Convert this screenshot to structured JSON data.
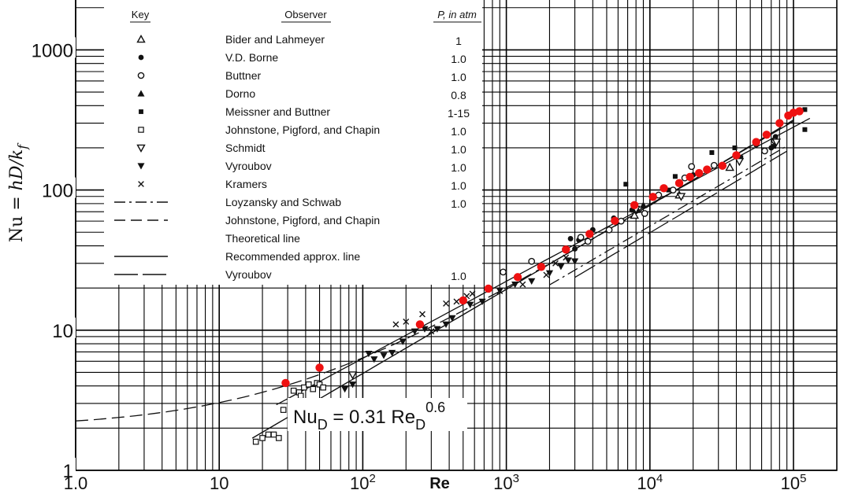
{
  "chart_data": {
    "type": "scatter",
    "x_scale": "log",
    "y_scale": "log",
    "xlim": [
      1,
      150000
    ],
    "ylim": [
      1,
      3200
    ],
    "grid": true,
    "x_ticks": [
      {
        "value": 1,
        "label": "1.0"
      },
      {
        "value": 10,
        "label": "10"
      },
      {
        "value": 100,
        "label": "10",
        "exp": "2"
      },
      {
        "value": 1000,
        "label": "10",
        "exp": "3"
      },
      {
        "value": 10000,
        "label": "10",
        "exp": "4"
      },
      {
        "value": 100000,
        "label": "10",
        "exp": "5"
      }
    ],
    "y_ticks": [
      {
        "value": 1,
        "label": "1"
      },
      {
        "value": 10,
        "label": "10"
      },
      {
        "value": 100,
        "label": "100"
      },
      {
        "value": 1000,
        "label": "1000"
      }
    ],
    "xlabel": "Re",
    "ylabel": {
      "base": "Nu = ",
      "expr": "hD/k",
      "sub": "f"
    },
    "legend": {
      "placement": "top-left",
      "headers": {
        "key": "Key",
        "observer": "Observer",
        "pressure": "P, in atm"
      },
      "entries": [
        {
          "marker": "triangle-open",
          "observer": "Bider and Lahmeyer",
          "pressure": "1"
        },
        {
          "marker": "circle-filled",
          "observer": "V.D. Borne",
          "pressure": "1.0"
        },
        {
          "marker": "circle-open",
          "observer": "Buttner",
          "pressure": "1.0"
        },
        {
          "marker": "triangle-filled",
          "observer": "Dorno",
          "pressure": "0.8"
        },
        {
          "marker": "square-filled",
          "observer": "Meissner and Buttner",
          "pressure": "1-15"
        },
        {
          "marker": "square-open",
          "observer": "Johnstone, Pigford, and Chapin",
          "pressure": "1.0"
        },
        {
          "marker": "triangle-down-open",
          "observer": "Schmidt",
          "pressure": "1.0"
        },
        {
          "marker": "triangle-down-filled",
          "observer": "Vyroubov",
          "pressure": "1.0"
        },
        {
          "marker": "x",
          "observer": "Kramers",
          "pressure": "1.0"
        },
        {
          "marker": "line-dashdot",
          "observer": "Loyzansky and Schwab",
          "pressure": "1.0"
        },
        {
          "marker": "line-dashed",
          "observer": "Johnstone, Pigford, and Chapin",
          "pressure": ""
        },
        {
          "marker": "none",
          "observer": "Theoretical line",
          "pressure": ""
        },
        {
          "marker": "line-solid",
          "observer": "Recommended approx. line",
          "pressure": ""
        },
        {
          "marker": "line-longdash",
          "observer": "Vyroubov",
          "pressure": "1.0"
        }
      ]
    },
    "annotation": {
      "text": "Nu",
      "sub": "D",
      "mid": " = 0.31 Re",
      "sub2": "D",
      "sup": "0.6"
    },
    "series": [
      {
        "name": "Bider and Lahmeyer",
        "marker": "triangle-open",
        "color": "#111111",
        "points": [
          [
            7800,
            66
          ],
          [
            36000,
            145
          ],
          [
            16000,
            92
          ]
        ]
      },
      {
        "name": "V.D. Borne",
        "marker": "circle-filled",
        "color": "#111111",
        "points": [
          [
            2800,
            45
          ],
          [
            3200,
            44
          ],
          [
            4000,
            52
          ],
          [
            5600,
            63
          ],
          [
            7500,
            72
          ],
          [
            75000,
            240
          ],
          [
            70000,
            200
          ],
          [
            55000,
            210
          ],
          [
            20000,
            128
          ],
          [
            3000,
            38
          ]
        ]
      },
      {
        "name": "Buttner",
        "marker": "circle-open",
        "color": "#111111",
        "points": [
          [
            950,
            26
          ],
          [
            1500,
            31
          ],
          [
            3300,
            46
          ],
          [
            3700,
            43
          ],
          [
            5200,
            52
          ],
          [
            6300,
            60
          ],
          [
            9200,
            68
          ],
          [
            11500,
            92
          ],
          [
            14500,
            100
          ],
          [
            17500,
            122
          ],
          [
            19500,
            147
          ],
          [
            28000,
            150
          ],
          [
            63000,
            190
          ],
          [
            74000,
            225
          ]
        ]
      },
      {
        "name": "Dorno",
        "marker": "triangle-filled",
        "color": "#111111",
        "points": [
          [
            8200,
            72
          ],
          [
            9000,
            78
          ]
        ]
      },
      {
        "name": "Meissner and Buttner",
        "marker": "square-filled",
        "color": "#111111",
        "points": [
          [
            6800,
            110
          ],
          [
            13500,
            100
          ],
          [
            15000,
            125
          ],
          [
            27000,
            185
          ],
          [
            39000,
            200
          ],
          [
            43000,
            170
          ],
          [
            73000,
            205
          ],
          [
            120000,
            375
          ],
          [
            120000,
            270
          ]
        ]
      },
      {
        "name": "Johnstone, Pigford, and Chapin",
        "marker": "square-open",
        "color": "#111111",
        "points": [
          [
            18,
            1.6
          ],
          [
            20,
            1.7
          ],
          [
            22,
            1.8
          ],
          [
            24,
            1.8
          ],
          [
            26,
            1.7
          ],
          [
            28,
            2.7
          ],
          [
            33,
            3.7
          ],
          [
            36,
            3.6
          ],
          [
            39,
            3.9
          ],
          [
            42,
            4.1
          ],
          [
            45,
            3.8
          ],
          [
            48,
            4.2
          ],
          [
            50,
            4.1
          ],
          [
            53,
            3.9
          ],
          [
            37,
            3.4
          ]
        ]
      },
      {
        "name": "Schmidt",
        "marker": "triangle-down-open",
        "color": "#111111",
        "points": [
          [
            85,
            4.8
          ],
          [
            8000,
            73
          ],
          [
            16500,
            90
          ],
          [
            42000,
            160
          ],
          [
            76000,
            220
          ]
        ]
      },
      {
        "name": "Vyroubov",
        "marker": "triangle-down-filled",
        "color": "#111111",
        "points": [
          [
            75,
            3.8
          ],
          [
            85,
            4.1
          ],
          [
            110,
            6.8
          ],
          [
            120,
            6.2
          ],
          [
            140,
            6.6
          ],
          [
            160,
            6.9
          ],
          [
            190,
            8.3
          ],
          [
            230,
            9.8
          ],
          [
            270,
            10.2
          ],
          [
            330,
            10.2
          ],
          [
            380,
            11.0
          ],
          [
            420,
            12.2
          ],
          [
            560,
            15.2
          ],
          [
            680,
            16.0
          ],
          [
            900,
            19.2
          ],
          [
            1150,
            21.2
          ],
          [
            1500,
            22.4
          ],
          [
            2000,
            25.5
          ],
          [
            2400,
            28.5
          ],
          [
            2700,
            31.5
          ],
          [
            3000,
            31.0
          ]
        ]
      },
      {
        "name": "Kramers",
        "marker": "x",
        "color": "#111111",
        "points": [
          [
            170,
            11.0
          ],
          [
            200,
            11.5
          ],
          [
            260,
            13.0
          ],
          [
            300,
            9.8
          ],
          [
            380,
            15.5
          ],
          [
            450,
            16.0
          ],
          [
            530,
            17.5
          ],
          [
            580,
            18.2
          ],
          [
            900,
            19.0
          ],
          [
            1300,
            21.2
          ],
          [
            1900,
            24.8
          ],
          [
            2200,
            30.0
          ],
          [
            2600,
            33.0
          ]
        ]
      },
      {
        "name": "",
        "marker": "circle-red",
        "color": "#ee1111",
        "points": [
          [
            29,
            4.2
          ],
          [
            50,
            5.4
          ],
          [
            250,
            11.0
          ],
          [
            500,
            16.3
          ],
          [
            750,
            19.8
          ],
          [
            1200,
            23.9
          ],
          [
            1750,
            28.3
          ],
          [
            2600,
            37.6
          ],
          [
            3800,
            48.6
          ],
          [
            5700,
            60.3
          ],
          [
            7800,
            78.0
          ],
          [
            10500,
            89.3
          ],
          [
            12500,
            103
          ],
          [
            16000,
            112
          ],
          [
            19000,
            124
          ],
          [
            22000,
            132
          ],
          [
            25000,
            140
          ],
          [
            32000,
            149
          ],
          [
            40000,
            177
          ],
          [
            55000,
            220
          ],
          [
            65000,
            248
          ],
          [
            80000,
            300
          ],
          [
            92000,
            340
          ],
          [
            100000,
            356
          ],
          [
            110000,
            365
          ]
        ]
      }
    ]
  }
}
